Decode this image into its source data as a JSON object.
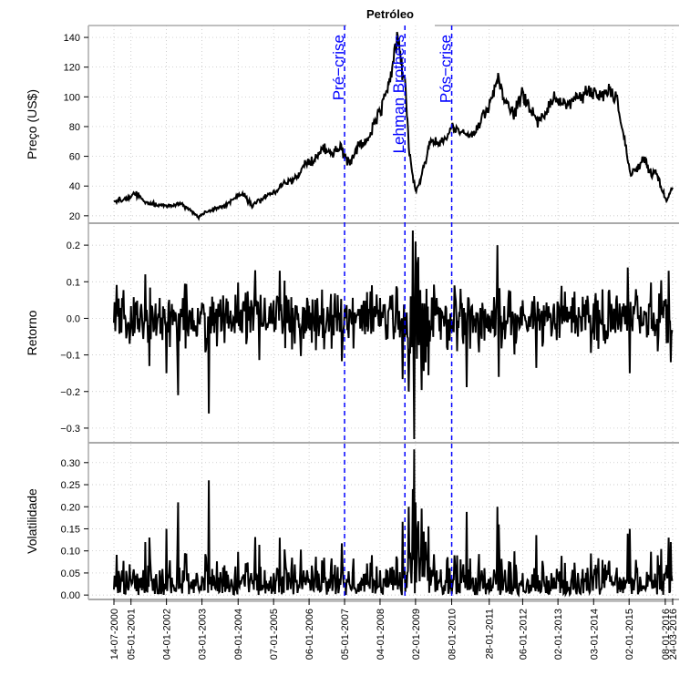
{
  "chart_data": {
    "type": "line",
    "title": "Petróleo",
    "colors": {
      "series": "#000000",
      "event": "#0000ff",
      "grid": "#bbbbbb",
      "frame": "#aaaaaa",
      "axis_band": "#c0c0c0"
    },
    "x_tick_labels": [
      "14-07-2000",
      "05-01-2001",
      "04-01-2002",
      "03-01-2003",
      "09-01-2004",
      "07-01-2005",
      "06-01-2006",
      "05-01-2007",
      "04-01-2008",
      "02-01-2009",
      "08-01-2010",
      "28-01-2011",
      "06-01-2012",
      "02-01-2013",
      "03-01-2014",
      "02-01-2015",
      "08-01-2016",
      "24-03-2016"
    ],
    "x_range": [
      "2000-07-14",
      "2016-03-24"
    ],
    "events": [
      {
        "label": "Pré−crise",
        "date": "2007-01-05"
      },
      {
        "label": "Lehman Brothers",
        "date": "2008-09-15"
      },
      {
        "label": "Pós−crise",
        "date": "2010-01-08"
      }
    ],
    "panels": [
      {
        "ylabel": "Preço (US$)",
        "ylim": [
          15,
          148
        ],
        "yticks": [
          "20",
          "40",
          "60",
          "80",
          "100",
          "120",
          "140"
        ],
        "series": {
          "x": [
            "2000-07-14",
            "2000-12-01",
            "2001-03-01",
            "2001-06-01",
            "2001-09-01",
            "2001-12-01",
            "2002-03-01",
            "2002-06-01",
            "2002-09-01",
            "2002-12-01",
            "2003-03-01",
            "2003-06-01",
            "2003-09-01",
            "2003-12-01",
            "2004-03-01",
            "2004-06-01",
            "2004-09-01",
            "2004-12-01",
            "2005-03-01",
            "2005-06-01",
            "2005-09-01",
            "2005-12-01",
            "2006-03-01",
            "2006-06-01",
            "2006-09-01",
            "2006-12-01",
            "2007-01-05",
            "2007-03-01",
            "2007-06-01",
            "2007-09-01",
            "2007-12-01",
            "2008-03-01",
            "2008-05-01",
            "2008-07-03",
            "2008-09-15",
            "2008-11-01",
            "2009-01-02",
            "2009-03-01",
            "2009-06-01",
            "2009-09-01",
            "2009-12-01",
            "2010-01-08",
            "2010-05-01",
            "2010-09-01",
            "2010-12-01",
            "2011-02-01",
            "2011-04-29",
            "2011-07-01",
            "2011-10-01",
            "2012-01-06",
            "2012-03-01",
            "2012-06-01",
            "2012-09-01",
            "2012-12-01",
            "2013-03-01",
            "2013-06-01",
            "2013-09-01",
            "2013-12-01",
            "2014-03-01",
            "2014-06-01",
            "2014-09-01",
            "2014-12-01",
            "2015-01-15",
            "2015-04-01",
            "2015-06-01",
            "2015-08-25",
            "2015-10-01",
            "2015-12-01",
            "2016-01-20",
            "2016-03-24"
          ],
          "values": [
            30,
            31,
            35,
            29,
            28,
            27,
            27,
            28,
            24,
            19,
            23,
            25,
            27,
            32,
            35,
            27,
            31,
            35,
            38,
            43,
            46,
            55,
            57,
            65,
            62,
            66,
            61,
            55,
            68,
            70,
            86,
            100,
            118,
            140,
            110,
            62,
            36,
            45,
            70,
            68,
            74,
            80,
            76,
            76,
            86,
            95,
            112,
            100,
            88,
            102,
            95,
            84,
            88,
            100,
            95,
            98,
            100,
            105,
            100,
            104,
            98,
            65,
            48,
            52,
            60,
            46,
            50,
            38,
            30,
            39
          ]
        }
      },
      {
        "ylabel": "Retorno",
        "ylim": [
          -0.34,
          0.26
        ],
        "yticks": [
          "−0.3",
          "−0.2",
          "−0.1",
          "0.0",
          "0.1",
          "0.2"
        ],
        "series": {
          "x": [
            "2001-06-01",
            "2002-01-04",
            "2002-05-03",
            "2003-03-14",
            "2005-03-14",
            "2008-10-24",
            "2008-12-05",
            "2008-12-19",
            "2009-01-02",
            "2009-01-23",
            "2010-02-05",
            "2011-04-22",
            "2011-05-06",
            "2015-01-09",
            "2016-02-12",
            "2016-03-04"
          ],
          "values": [
            0.12,
            -0.15,
            -0.21,
            -0.26,
            0.13,
            -0.2,
            0.24,
            -0.33,
            0.21,
            0.15,
            0.09,
            0.2,
            -0.16,
            -0.15,
            0.13,
            -0.12
          ]
        }
      },
      {
        "ylabel": "Volatilidade",
        "ylim": [
          -0.01,
          0.345
        ],
        "yticks": [
          "0.00",
          "0.05",
          "0.10",
          "0.15",
          "0.20",
          "0.25",
          "0.30"
        ],
        "series": {
          "x": [
            "2001-06-01",
            "2002-01-04",
            "2002-05-03",
            "2003-03-14",
            "2005-03-14",
            "2008-10-24",
            "2008-12-05",
            "2008-12-19",
            "2009-01-02",
            "2009-01-23",
            "2010-02-05",
            "2011-04-22",
            "2011-05-06",
            "2015-01-09",
            "2016-02-12",
            "2016-03-04"
          ],
          "values": [
            0.12,
            0.15,
            0.21,
            0.26,
            0.13,
            0.2,
            0.24,
            0.33,
            0.21,
            0.15,
            0.09,
            0.2,
            0.16,
            0.15,
            0.13,
            0.12
          ]
        }
      }
    ]
  }
}
